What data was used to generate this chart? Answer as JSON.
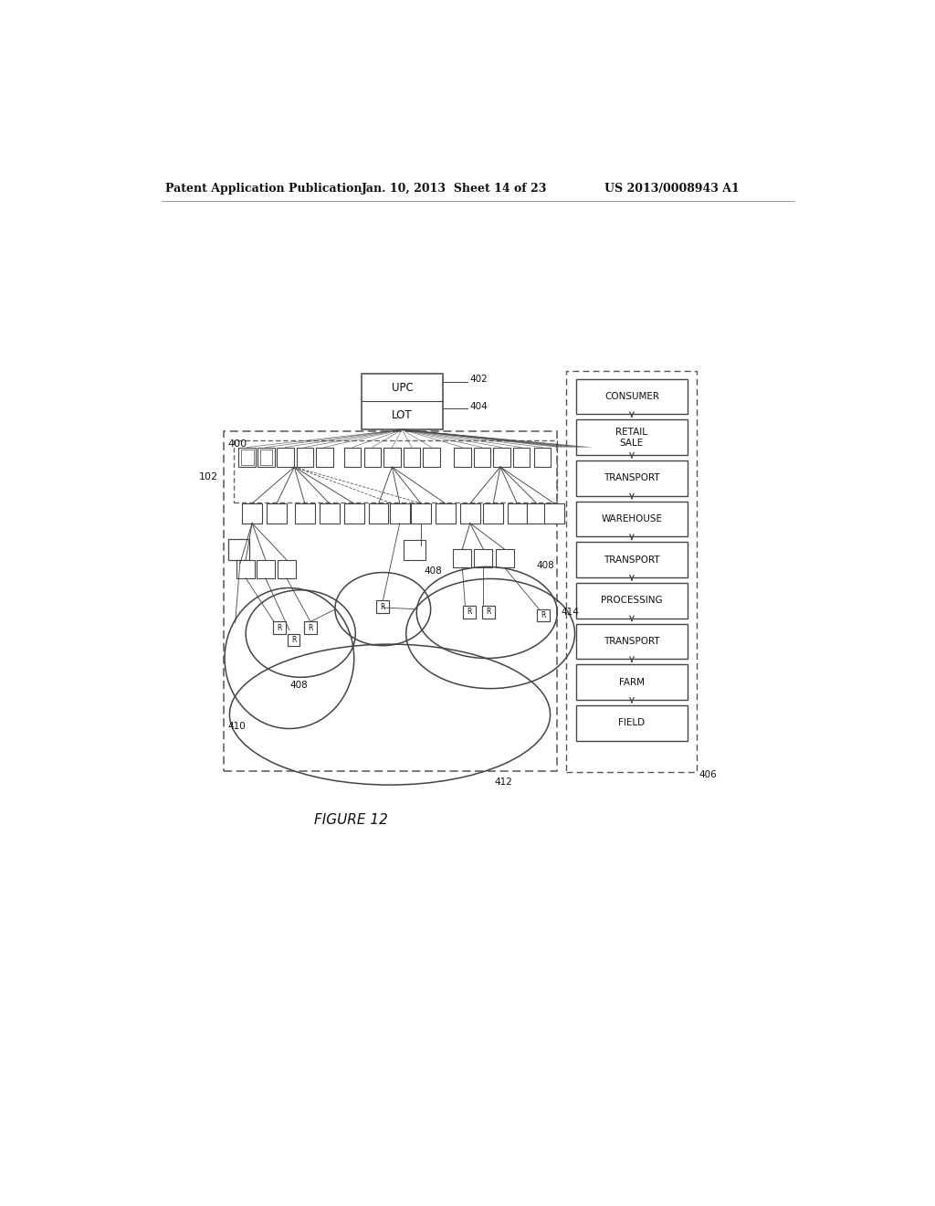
{
  "header_left": "Patent Application Publication",
  "header_center": "Jan. 10, 2013  Sheet 14 of 23",
  "header_right": "US 2013/0008943 A1",
  "figure_label": "FIGURE 12",
  "supply_chain": [
    "CONSUMER",
    "RETAIL\nSALE",
    "TRANSPORT",
    "WAREHOUSE",
    "TRANSPORT",
    "PROCESSING",
    "TRANSPORT",
    "FARM",
    "FIELD"
  ],
  "upc_label": "UPC",
  "lot_label": "LOT",
  "ref_402": "402",
  "ref_404": "404",
  "ref_400": "400",
  "ref_102": "102",
  "ref_408a": "408",
  "ref_408b": "408",
  "ref_408c": "408",
  "ref_410": "410",
  "ref_412": "412",
  "ref_414": "414",
  "ref_406": "406",
  "background_color": "#ffffff",
  "line_color": "#444444",
  "text_color": "#111111"
}
